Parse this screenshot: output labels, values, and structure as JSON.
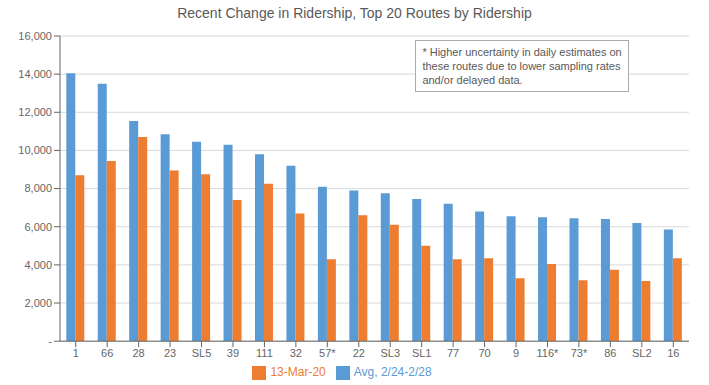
{
  "chart_data": {
    "type": "bar",
    "title": "Recent Change in Ridership, Top 20 Routes by Ridership",
    "categories": [
      "1",
      "66",
      "28",
      "23",
      "SL5",
      "39",
      "111",
      "32",
      "57*",
      "22",
      "SL3",
      "SL1",
      "77",
      "70",
      "9",
      "116*",
      "73*",
      "86",
      "SL2",
      "16"
    ],
    "series": [
      {
        "name": "Avg, 2/24-2/28",
        "color": "#5B9BD5",
        "values": [
          14050,
          13500,
          11550,
          10850,
          10450,
          10300,
          9800,
          9200,
          8100,
          7900,
          7750,
          7450,
          7200,
          6800,
          6550,
          6500,
          6450,
          6400,
          6200,
          5850
        ]
      },
      {
        "name": "13-Mar-20",
        "color": "#ED7D31",
        "values": [
          8700,
          9450,
          10700,
          8950,
          8750,
          7400,
          8250,
          6700,
          4300,
          6600,
          6100,
          5000,
          4300,
          4350,
          3300,
          4050,
          3200,
          3750,
          3150,
          4350
        ]
      }
    ],
    "ylim": [
      0,
      16000
    ],
    "yticks": [
      {
        "value": 0,
        "label": "-"
      },
      {
        "value": 2000,
        "label": "2,000"
      },
      {
        "value": 4000,
        "label": "4,000"
      },
      {
        "value": 6000,
        "label": "6,000"
      },
      {
        "value": 8000,
        "label": "8,000"
      },
      {
        "value": 10000,
        "label": "10,000"
      },
      {
        "value": 12000,
        "label": "12,000"
      },
      {
        "value": 14000,
        "label": "14,000"
      },
      {
        "value": 16000,
        "label": "16,000"
      }
    ],
    "grid": true,
    "legend": "bottom",
    "annotation": "* Higher uncertainty in daily estimates on\nthese routes due to lower sampling rates\nand/or delayed data."
  }
}
